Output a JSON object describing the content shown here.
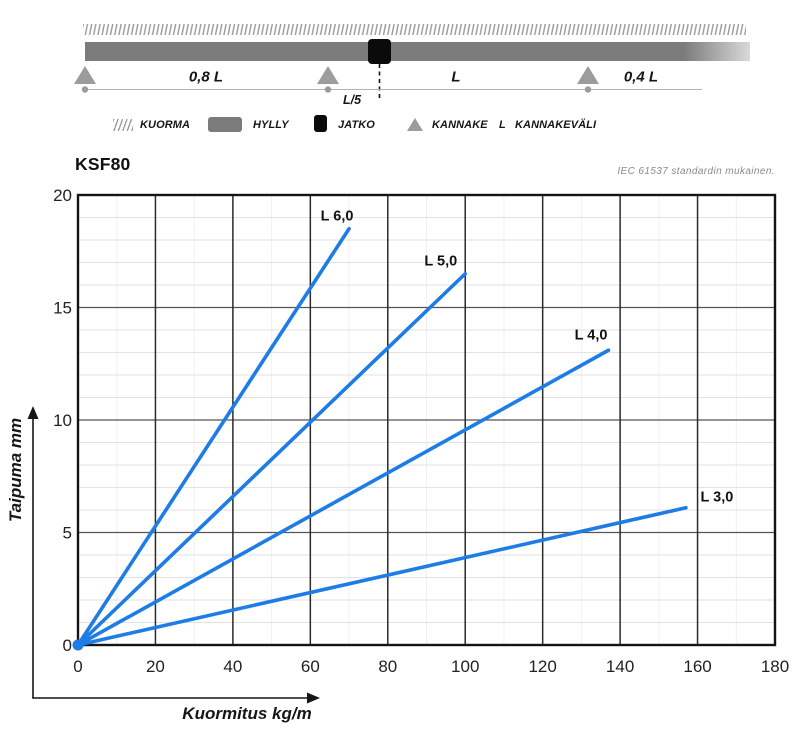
{
  "page": {
    "title": "KSF80",
    "standard_note": "IEC 61537 standardin mukainen."
  },
  "diagram": {
    "span_labels": {
      "left": "0,8 L",
      "middle": "L",
      "right": "0,4 L",
      "splice_offset": "L/5"
    },
    "legend": [
      {
        "icon": "hatch-icon",
        "label": "KUORMA"
      },
      {
        "icon": "beam-icon",
        "label": "HYLLY"
      },
      {
        "icon": "splice-icon",
        "label": "JATKO"
      },
      {
        "icon": "triangle-icon",
        "label": "KANNAKE"
      },
      {
        "icon": "letter-L",
        "symbol": "L",
        "label": "KANNAKEVÄLI"
      }
    ],
    "colors": {
      "beam": "#7b7b7b",
      "support": "#9c9c9c",
      "splice": "#0b0b0b",
      "hatch": "#9a9a9a"
    }
  },
  "chart_data": {
    "type": "line",
    "title": "KSF80",
    "note": "IEC 61537 standardin mukainen.",
    "xlabel": "Kuormitus kg/m",
    "ylabel": "Taipuma mm",
    "xlim": [
      0,
      180
    ],
    "ylim": [
      0,
      20
    ],
    "x_ticks": [
      0,
      20,
      40,
      60,
      80,
      100,
      120,
      140,
      160,
      180
    ],
    "y_ticks": [
      0,
      5,
      10,
      15,
      20
    ],
    "x_major_step": 20,
    "x_minor_step": 10,
    "y_major_step": 5,
    "y_minor_step": 1,
    "grid": "major+minor",
    "legend_position": "inline-labels",
    "line_color": "#1e7ce6",
    "series": [
      {
        "name": "L 6,0",
        "x": [
          0,
          70
        ],
        "y": [
          0,
          18.5
        ],
        "label_at": [
          66.9,
          19.1
        ]
      },
      {
        "name": "L 5,0",
        "x": [
          0,
          100
        ],
        "y": [
          0,
          16.5
        ],
        "label_at": [
          93.7,
          17.1
        ]
      },
      {
        "name": "L 4,0",
        "x": [
          0,
          137
        ],
        "y": [
          0,
          13.1
        ],
        "label_at": [
          132.5,
          13.8
        ]
      },
      {
        "name": "L 3,0",
        "x": [
          0,
          157
        ],
        "y": [
          0,
          6.1
        ],
        "label_at": [
          165.0,
          6.6
        ]
      }
    ]
  }
}
